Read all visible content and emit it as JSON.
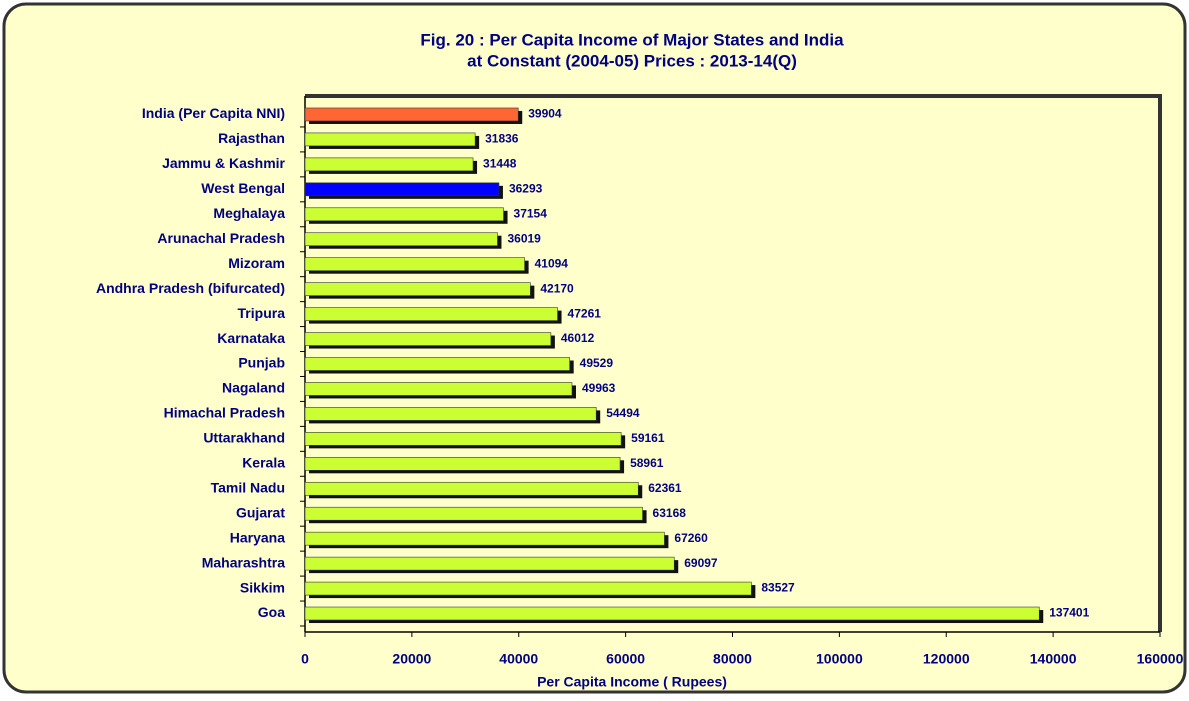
{
  "chart_data": {
    "type": "bar",
    "orientation": "horizontal",
    "title": [
      "Fig. 20 : Per Capita Income of Major States and India",
      "at Constant (2004-05) Prices : 2013-14(Q)"
    ],
    "x_label": "Per Capita Income ( Rupees)",
    "categories": [
      "India (Per Capita NNI)",
      "Rajasthan",
      "Jammu & Kashmir",
      "West Bengal",
      "Meghalaya",
      "Arunachal Pradesh",
      "Mizoram",
      "Andhra Pradesh (bifurcated)",
      "Tripura",
      "Karnataka",
      "Punjab",
      "Nagaland",
      "Himachal Pradesh",
      "Uttarakhand",
      "Kerala",
      "Tamil Nadu",
      "Gujarat",
      "Haryana",
      "Maharashtra",
      "Sikkim",
      "Goa"
    ],
    "values": [
      39904,
      31836,
      31448,
      36293,
      37154,
      36019,
      41094,
      42170,
      47261,
      46012,
      49529,
      49963,
      54494,
      59161,
      58961,
      62361,
      63168,
      67260,
      69097,
      83527,
      137401
    ],
    "colors": [
      "#ff6633",
      "#ccff33",
      "#ccff33",
      "#0000ff",
      "#ccff33",
      "#ccff33",
      "#ccff33",
      "#ccff33",
      "#ccff33",
      "#ccff33",
      "#ccff33",
      "#ccff33",
      "#ccff33",
      "#ccff33",
      "#ccff33",
      "#ccff33",
      "#ccff33",
      "#ccff33",
      "#ccff33",
      "#ccff33",
      "#ccff33"
    ],
    "xlim": [
      0,
      160000
    ],
    "xticks": [
      0,
      20000,
      40000,
      60000,
      80000,
      100000,
      120000,
      140000,
      160000
    ]
  }
}
